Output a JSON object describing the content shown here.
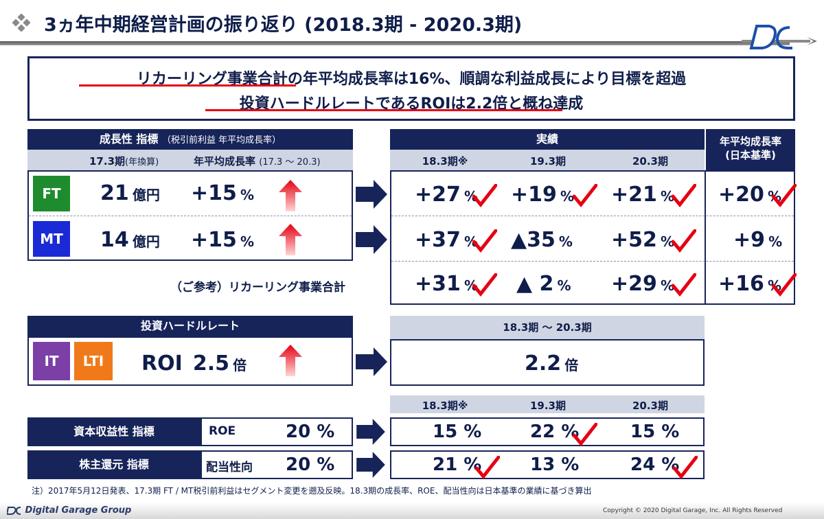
{
  "title": "3ヵ年中期経営計画の振り返り (2018.3期 - 2020.3期)",
  "summary": {
    "line1": "リカーリング事業合計の年平均成長率は16%、順調な利益成長により目標を超過",
    "line2": "投資ハードルレートであるROIは2.2倍と概ね達成"
  },
  "growth": {
    "header": "成長性 指標",
    "header_note": "（税引前利益 年平均成長率）",
    "col1": "17.3期",
    "col1_note": "(年換算)",
    "col2": "年平均成長率",
    "col2_note": "(17.3 ～ 20.3)",
    "rows": [
      {
        "tag": "FT",
        "color": "#1e8c2e",
        "base": "21",
        "base_unit": "億円",
        "target": "+15",
        "target_unit": "%"
      },
      {
        "tag": "MT",
        "color": "#1a2ad6",
        "base": "14",
        "base_unit": "億円",
        "target": "+15",
        "target_unit": "%"
      }
    ],
    "reference_label": "（ご参考）リカーリング事業合計"
  },
  "results": {
    "header": "実績",
    "cagr_header": "年平均成長率",
    "cagr_note": "(日本基準)",
    "periods": [
      "18.3期※",
      "19.3期",
      "20.3期"
    ],
    "rows": [
      {
        "v1": "+27",
        "v2": "+19",
        "v3": "+21",
        "cagr": "+20"
      },
      {
        "v1": "+37",
        "v2": "▲35",
        "v3": "+52",
        "cagr": "+9"
      },
      {
        "v1": "+31",
        "v2": "▲ 2",
        "v3": "+29",
        "cagr": "+16"
      }
    ],
    "unit": "%"
  },
  "hurdle": {
    "header": "投資ハードルレート",
    "tags": [
      {
        "label": "IT",
        "color": "#7b3fa6"
      },
      {
        "label": "LTI",
        "color": "#f07a1a"
      }
    ],
    "label": "ROI",
    "value": "2.5",
    "unit": "倍",
    "result_header": "18.3期 ～ 20.3期",
    "result_value": "2.2",
    "result_unit": "倍"
  },
  "capital": {
    "periods": [
      "18.3期※",
      "19.3期",
      "20.3期"
    ],
    "rows": [
      {
        "name": "資本収益性 指標",
        "metric": "ROE",
        "target": "20 %",
        "v1": "15 %",
        "v2": "22 %",
        "v3": "15 %"
      },
      {
        "name": "株主還元 指標",
        "metric": "配当性向",
        "target": "20 %",
        "v1": "21 %",
        "v2": "13 %",
        "v3": "24 %"
      }
    ]
  },
  "footnote": "注）2017年5月12日発表、17.3期 FT / MT税引前利益はセグメント変更を遡及反映。18.3期の成長率、ROE、配当性向は日本基準の業績に基づき算出",
  "footer": {
    "company": "Digital Garage Group",
    "copyright": "Copyright © 2020 Digital Garage, Inc. All Rights Reserved"
  },
  "colors": {
    "navy": "#17245a",
    "check": "#e60012",
    "header_grey": "#cfd5e2"
  }
}
